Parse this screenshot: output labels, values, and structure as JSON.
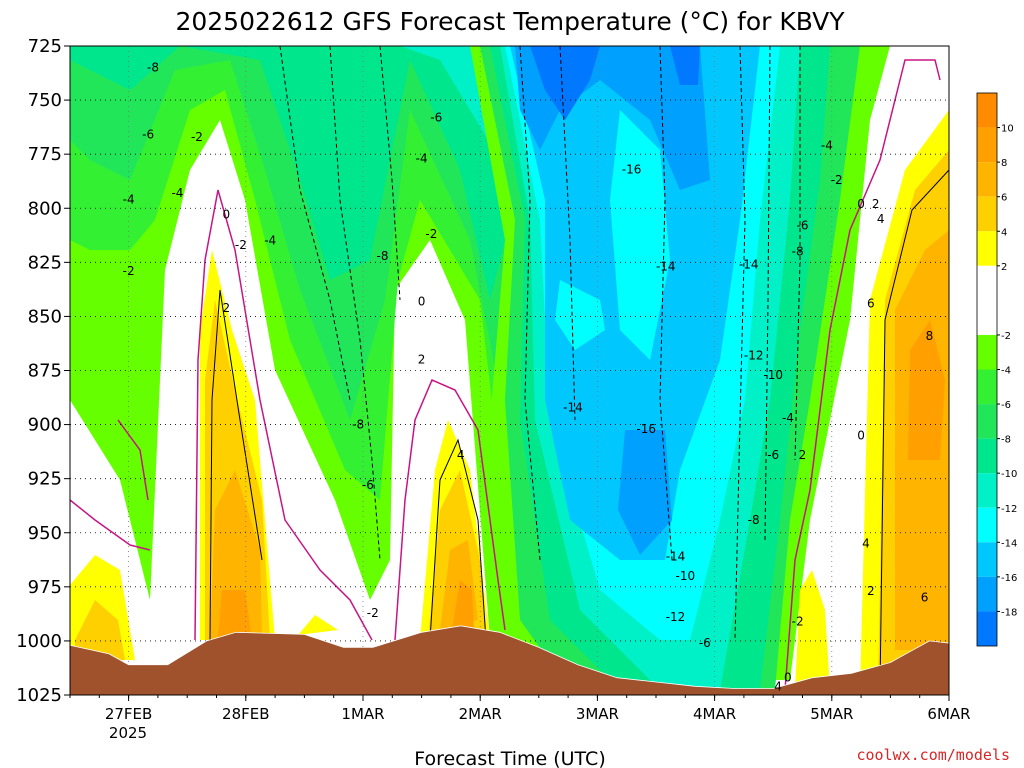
{
  "chart_data": {
    "type": "heatmap",
    "title": "2025022612 GFS Forecast Temperature (°C) for KBVY",
    "xlabel": "Forecast Time (UTC)",
    "ylabel": "",
    "credit": "coolwx.com/models",
    "x_ticks": [
      "27FEB",
      "28FEB",
      "1MAR",
      "2MAR",
      "3MAR",
      "4MAR",
      "5MAR",
      "6MAR"
    ],
    "x_tick_hours": [
      12,
      36,
      60,
      84,
      108,
      132,
      156,
      180
    ],
    "x_sublabel": "2025",
    "xlim_hours": [
      0,
      180
    ],
    "y_ticks": [
      725,
      750,
      775,
      800,
      825,
      850,
      875,
      900,
      925,
      950,
      975,
      1000,
      1025
    ],
    "ylim_hPa": [
      725,
      1025
    ],
    "grid": true,
    "colorbar": {
      "placement": "right",
      "labels": [
        10,
        8,
        6,
        4,
        2,
        -2,
        -4,
        -6,
        -8,
        -10,
        -12,
        -14,
        -16,
        -18
      ],
      "bands": [
        {
          "range": [
            10,
            12
          ],
          "color": "#ff8c00"
        },
        {
          "range": [
            8,
            10
          ],
          "color": "#ffa000"
        },
        {
          "range": [
            6,
            8
          ],
          "color": "#ffb400"
        },
        {
          "range": [
            4,
            6
          ],
          "color": "#ffd000"
        },
        {
          "range": [
            2,
            4
          ],
          "color": "#ffff00"
        },
        {
          "range": [
            -2,
            2
          ],
          "color": "#ffffff"
        },
        {
          "range": [
            -4,
            -2
          ],
          "color": "#66ff00"
        },
        {
          "range": [
            -6,
            -4
          ],
          "color": "#33f033"
        },
        {
          "range": [
            -8,
            -6
          ],
          "color": "#22e65a"
        },
        {
          "range": [
            -10,
            -8
          ],
          "color": "#00e68c"
        },
        {
          "range": [
            -12,
            -10
          ],
          "color": "#00f0c8"
        },
        {
          "range": [
            -14,
            -12
          ],
          "color": "#00ffff"
        },
        {
          "range": [
            -16,
            -14
          ],
          "color": "#00c8ff"
        },
        {
          "range": [
            -18,
            -16
          ],
          "color": "#00a0ff"
        },
        {
          "range": [
            -20,
            -18
          ],
          "color": "#0078ff"
        }
      ]
    },
    "terrain_color": "#a0522d",
    "surface_pressure": [
      {
        "h": 0,
        "p": 1002
      },
      {
        "h": 8,
        "p": 1006
      },
      {
        "h": 12,
        "p": 1011
      },
      {
        "h": 20,
        "p": 1011
      },
      {
        "h": 28,
        "p": 1000
      },
      {
        "h": 34,
        "p": 996
      },
      {
        "h": 48,
        "p": 997
      },
      {
        "h": 56,
        "p": 1003
      },
      {
        "h": 62,
        "p": 1003
      },
      {
        "h": 72,
        "p": 996
      },
      {
        "h": 80,
        "p": 993
      },
      {
        "h": 88,
        "p": 996
      },
      {
        "h": 96,
        "p": 1003
      },
      {
        "h": 104,
        "p": 1011
      },
      {
        "h": 112,
        "p": 1017
      },
      {
        "h": 120,
        "p": 1019
      },
      {
        "h": 128,
        "p": 1021
      },
      {
        "h": 136,
        "p": 1022
      },
      {
        "h": 144,
        "p": 1022
      },
      {
        "h": 152,
        "p": 1017
      },
      {
        "h": 160,
        "p": 1015
      },
      {
        "h": 168,
        "p": 1010
      },
      {
        "h": 172,
        "p": 1005
      },
      {
        "h": 176,
        "p": 1000
      },
      {
        "h": 180,
        "p": 1001
      }
    ],
    "contour_labels": [
      {
        "h": 17,
        "p": 735,
        "text": "-8"
      },
      {
        "h": 16,
        "p": 766,
        "text": "-6"
      },
      {
        "h": 12,
        "p": 796,
        "text": "-4"
      },
      {
        "h": 12,
        "p": 829,
        "text": "-2"
      },
      {
        "h": 26,
        "p": 767,
        "text": "-2"
      },
      {
        "h": 22,
        "p": 793,
        "text": "-4"
      },
      {
        "h": 32,
        "p": 803,
        "text": "0"
      },
      {
        "h": 35,
        "p": 817,
        "text": "-2"
      },
      {
        "h": 41,
        "p": 815,
        "text": "-4"
      },
      {
        "h": 32,
        "p": 846,
        "text": "2"
      },
      {
        "h": 64,
        "p": 822,
        "text": "-8"
      },
      {
        "h": 59,
        "p": 900,
        "text": "-8"
      },
      {
        "h": 61,
        "p": 928,
        "text": "-6"
      },
      {
        "h": 62,
        "p": 987,
        "text": "-2"
      },
      {
        "h": 75,
        "p": 758,
        "text": "-6"
      },
      {
        "h": 72,
        "p": 777,
        "text": "-4"
      },
      {
        "h": 74,
        "p": 812,
        "text": "-2"
      },
      {
        "h": 72,
        "p": 843,
        "text": "0"
      },
      {
        "h": 72,
        "p": 870,
        "text": "2"
      },
      {
        "h": 80,
        "p": 914,
        "text": "4"
      },
      {
        "h": 103,
        "p": 892,
        "text": "-14"
      },
      {
        "h": 115,
        "p": 782,
        "text": "-16"
      },
      {
        "h": 118,
        "p": 902,
        "text": "-16"
      },
      {
        "h": 122,
        "p": 827,
        "text": "-14"
      },
      {
        "h": 139,
        "p": 826,
        "text": "-14"
      },
      {
        "h": 140,
        "p": 868,
        "text": "-12"
      },
      {
        "h": 144,
        "p": 877,
        "text": "-10"
      },
      {
        "h": 149,
        "p": 820,
        "text": "-8"
      },
      {
        "h": 150,
        "p": 808,
        "text": "-6"
      },
      {
        "h": 155,
        "p": 771,
        "text": "-4"
      },
      {
        "h": 157,
        "p": 787,
        "text": "-2"
      },
      {
        "h": 162,
        "p": 798,
        "text": "0"
      },
      {
        "h": 165,
        "p": 798,
        "text": "2"
      },
      {
        "h": 166,
        "p": 805,
        "text": "4"
      },
      {
        "h": 164,
        "p": 844,
        "text": "6"
      },
      {
        "h": 176,
        "p": 859,
        "text": "8"
      },
      {
        "h": 162,
        "p": 905,
        "text": "0"
      },
      {
        "h": 150,
        "p": 914,
        "text": "2"
      },
      {
        "h": 147,
        "p": 897,
        "text": "-4"
      },
      {
        "h": 144,
        "p": 914,
        "text": "-6"
      },
      {
        "h": 140,
        "p": 944,
        "text": "-8"
      },
      {
        "h": 124,
        "p": 961,
        "text": "-14"
      },
      {
        "h": 126,
        "p": 970,
        "text": "-10"
      },
      {
        "h": 124,
        "p": 989,
        "text": "-12"
      },
      {
        "h": 130,
        "p": 1001,
        "text": "-6"
      },
      {
        "h": 149,
        "p": 991,
        "text": "-2"
      },
      {
        "h": 147,
        "p": 1017,
        "text": "0"
      },
      {
        "h": 145,
        "p": 1021,
        "text": "4"
      },
      {
        "h": 163,
        "p": 955,
        "text": "4"
      },
      {
        "h": 164,
        "p": 977,
        "text": "2"
      },
      {
        "h": 175,
        "p": 980,
        "text": "6"
      }
    ]
  }
}
